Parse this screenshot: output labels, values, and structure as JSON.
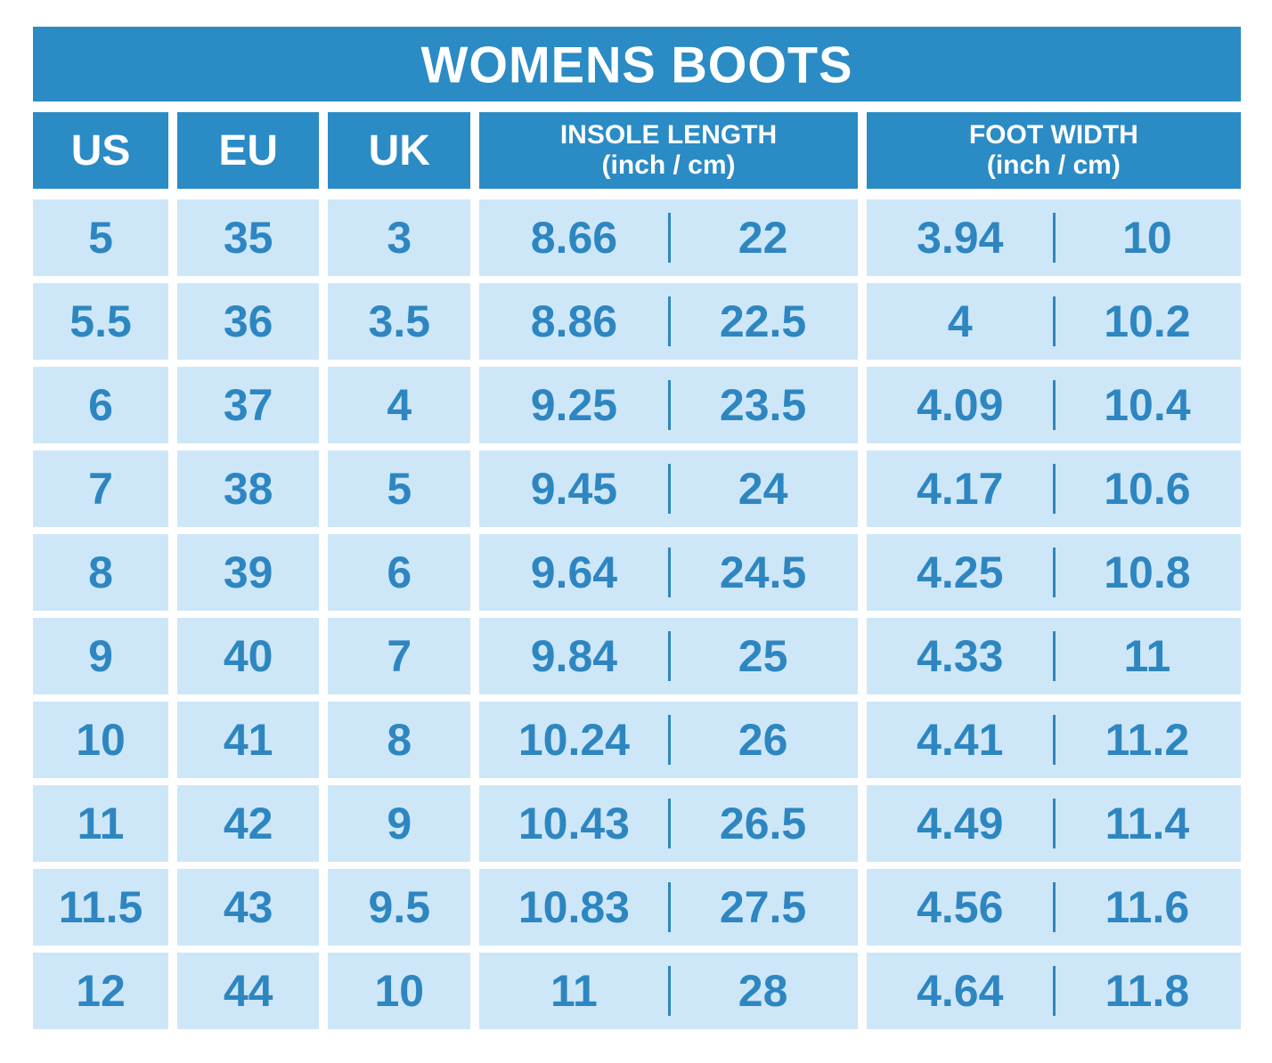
{
  "colors": {
    "banner_blue": "#2a8bc5",
    "cell_light_blue": "#cde7f8",
    "number_blue": "#2e86c1",
    "title_text": "#ffffff"
  },
  "chart_data": {
    "type": "table",
    "title": "WOMENS BOOTS",
    "columns": [
      {
        "label": "US"
      },
      {
        "label": "EU"
      },
      {
        "label": "UK"
      },
      {
        "label": "INSOLE LENGTH",
        "sublabel": "(inch / cm)"
      },
      {
        "label": "FOOT WIDTH",
        "sublabel": "(inch / cm)"
      }
    ],
    "rows": [
      {
        "us": "5",
        "eu": "35",
        "uk": "3",
        "insole_inch": "8.66",
        "insole_cm": "22",
        "width_inch": "3.94",
        "width_cm": "10"
      },
      {
        "us": "5.5",
        "eu": "36",
        "uk": "3.5",
        "insole_inch": "8.86",
        "insole_cm": "22.5",
        "width_inch": "4",
        "width_cm": "10.2"
      },
      {
        "us": "6",
        "eu": "37",
        "uk": "4",
        "insole_inch": "9.25",
        "insole_cm": "23.5",
        "width_inch": "4.09",
        "width_cm": "10.4"
      },
      {
        "us": "7",
        "eu": "38",
        "uk": "5",
        "insole_inch": "9.45",
        "insole_cm": "24",
        "width_inch": "4.17",
        "width_cm": "10.6"
      },
      {
        "us": "8",
        "eu": "39",
        "uk": "6",
        "insole_inch": "9.64",
        "insole_cm": "24.5",
        "width_inch": "4.25",
        "width_cm": "10.8"
      },
      {
        "us": "9",
        "eu": "40",
        "uk": "7",
        "insole_inch": "9.84",
        "insole_cm": "25",
        "width_inch": "4.33",
        "width_cm": "11"
      },
      {
        "us": "10",
        "eu": "41",
        "uk": "8",
        "insole_inch": "10.24",
        "insole_cm": "26",
        "width_inch": "4.41",
        "width_cm": "11.2"
      },
      {
        "us": "11",
        "eu": "42",
        "uk": "9",
        "insole_inch": "10.43",
        "insole_cm": "26.5",
        "width_inch": "4.49",
        "width_cm": "11.4"
      },
      {
        "us": "11.5",
        "eu": "43",
        "uk": "9.5",
        "insole_inch": "10.83",
        "insole_cm": "27.5",
        "width_inch": "4.56",
        "width_cm": "11.6"
      },
      {
        "us": "12",
        "eu": "44",
        "uk": "10",
        "insole_inch": "11",
        "insole_cm": "28",
        "width_inch": "4.64",
        "width_cm": "11.8"
      }
    ]
  }
}
